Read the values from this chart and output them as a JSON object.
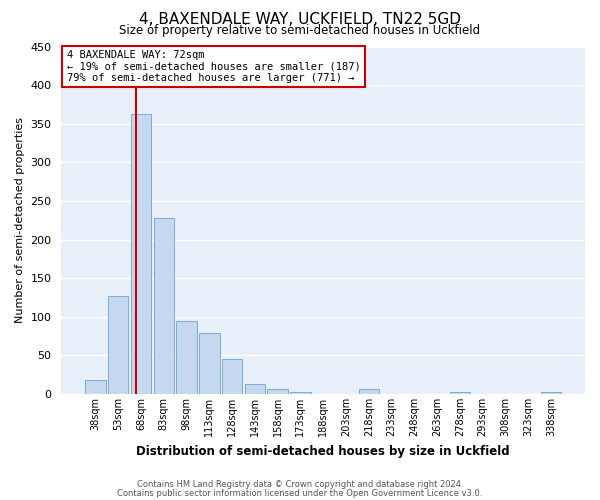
{
  "title": "4, BAXENDALE WAY, UCKFIELD, TN22 5GD",
  "subtitle": "Size of property relative to semi-detached houses in Uckfield",
  "xlabel": "Distribution of semi-detached houses by size in Uckfield",
  "ylabel": "Number of semi-detached properties",
  "bar_labels": [
    "38sqm",
    "53sqm",
    "68sqm",
    "83sqm",
    "98sqm",
    "113sqm",
    "128sqm",
    "143sqm",
    "158sqm",
    "173sqm",
    "188sqm",
    "203sqm",
    "218sqm",
    "233sqm",
    "248sqm",
    "263sqm",
    "278sqm",
    "293sqm",
    "308sqm",
    "323sqm",
    "338sqm"
  ],
  "bar_heights": [
    18,
    127,
    363,
    228,
    95,
    79,
    45,
    13,
    6,
    2,
    0,
    0,
    6,
    0,
    0,
    0,
    2,
    0,
    0,
    0,
    2
  ],
  "bar_color": "#c5d8f0",
  "bar_edge_color": "#7aadd4",
  "bg_color": "#e8eff8",
  "grid_color": "#ffffff",
  "ylim": [
    0,
    450
  ],
  "yticks": [
    0,
    50,
    100,
    150,
    200,
    250,
    300,
    350,
    400,
    450
  ],
  "vline_color": "#cc0000",
  "annotation_title": "4 BAXENDALE WAY: 72sqm",
  "annotation_line1": "← 19% of semi-detached houses are smaller (187)",
  "annotation_line2": "79% of semi-detached houses are larger (771) →",
  "annotation_box_color": "#cc0000",
  "footer_line1": "Contains HM Land Registry data © Crown copyright and database right 2024.",
  "footer_line2": "Contains public sector information licensed under the Open Government Licence v3.0."
}
